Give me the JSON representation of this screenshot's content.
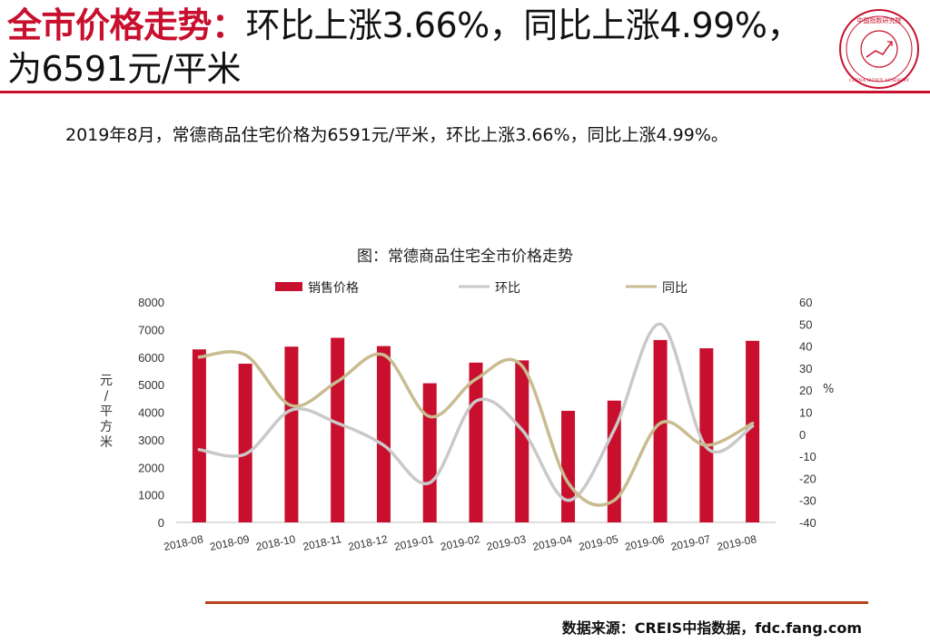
{
  "header": {
    "title_highlight": "全市价格走势：",
    "title_rest": "环比上涨3.66%，同比上涨4.99%，为6591元/平米",
    "seal_text": "中国指数研究院",
    "seal_en": "CHINA INDEX ACADEMY"
  },
  "summary": "2019年8月，常德商品住宅价格为6591元/平米，环比上涨3.66%，同比上涨4.99%。",
  "chart_data": {
    "type": "bar",
    "title": "图：常德商品住宅全市价格走势",
    "categories": [
      "2018-08",
      "2018-09",
      "2018-10",
      "2018-11",
      "2018-12",
      "2019-01",
      "2019-02",
      "2019-03",
      "2019-04",
      "2019-05",
      "2019-06",
      "2019-07",
      "2019-08"
    ],
    "series": [
      {
        "name": "销售价格",
        "kind": "bar",
        "axis": "left",
        "color": "#c8102e",
        "values": [
          6280,
          5760,
          6380,
          6700,
          6400,
          5050,
          5800,
          5880,
          4050,
          4420,
          6620,
          6320,
          6591
        ]
      },
      {
        "name": "环比",
        "kind": "line",
        "axis": "right",
        "color": "#c9c9c9",
        "values": [
          -7,
          -9,
          11,
          5,
          -5,
          -22,
          15,
          2,
          -30,
          2,
          50,
          -6,
          3.66
        ]
      },
      {
        "name": "同比",
        "kind": "line",
        "axis": "right",
        "color": "#c8bc90",
        "values": [
          35,
          36,
          13,
          24,
          36,
          8,
          25,
          31,
          -22,
          -30,
          5,
          -5,
          4.99
        ]
      }
    ],
    "ylabel_left": "元/平方米",
    "ylabel_right": "%",
    "ylim_left": [
      0,
      8000
    ],
    "yticks_left": [
      "0",
      "1000",
      "2000",
      "3000",
      "4000",
      "5000",
      "6000",
      "7000",
      "8000"
    ],
    "ylim_right": [
      -40,
      60
    ],
    "yticks_right": [
      "-40",
      "-30",
      "-20",
      "-10",
      "0",
      "10",
      "20",
      "30",
      "40",
      "50",
      "60"
    ],
    "legend_position": "top",
    "grid": false
  },
  "footer": {
    "source": "数据来源：CREIS中指数据，fdc.fang.com"
  }
}
